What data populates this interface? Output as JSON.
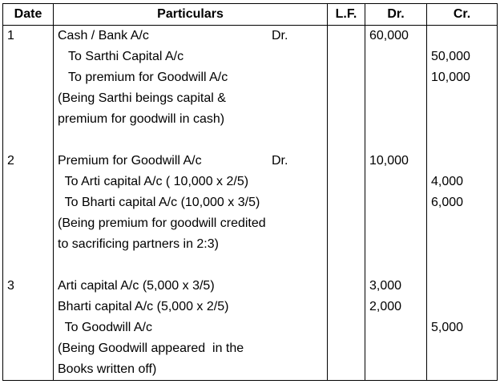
{
  "headers": {
    "date": "Date",
    "particulars": "Particulars",
    "lf": "L.F.",
    "dr": "Dr.",
    "cr": "Cr."
  },
  "entries": [
    {
      "date": "1",
      "lines": [
        {
          "text": "Cash / Bank A/c",
          "dr_mark": "Dr.",
          "dr": "60,000",
          "cr": ""
        },
        {
          "text": "   To Sarthi Capital A/c",
          "dr": "",
          "cr": "50,000"
        },
        {
          "text": "   To premium for Goodwill A/c",
          "dr": "",
          "cr": "10,000"
        },
        {
          "text": "(Being Sarthi beings capital &",
          "dr": "",
          "cr": ""
        },
        {
          "text": "premium for goodwill in cash)",
          "dr": "",
          "cr": ""
        }
      ]
    },
    {
      "date": "2",
      "lines": [
        {
          "text": "Premium for Goodwill A/c",
          "dr_mark": "Dr.",
          "dr": "10,000",
          "cr": ""
        },
        {
          "text": "  To Arti capital A/c ( 10,000 x 2/5)",
          "dr": "",
          "cr": "4,000"
        },
        {
          "text": "  To Bharti capital A/c (10,000 x 3/5)",
          "dr": "",
          "cr": "6,000"
        },
        {
          "text": "(Being premium for goodwill credited",
          "dr": "",
          "cr": ""
        },
        {
          "text": "to sacrificing partners in 2:3)",
          "dr": "",
          "cr": ""
        }
      ]
    },
    {
      "date": "3",
      "lines": [
        {
          "text": "Arti capital A/c (5,000 x 3/5)",
          "dr": "3,000",
          "cr": ""
        },
        {
          "text": "Bharti capital A/c (5,000 x 2/5)",
          "dr": "2,000",
          "cr": ""
        },
        {
          "text": "  To Goodwill A/c",
          "dr": "",
          "cr": "5,000"
        },
        {
          "text": "(Being Goodwill appeared  in the",
          "dr": "",
          "cr": ""
        },
        {
          "text": "Books written off)",
          "dr": "",
          "cr": ""
        }
      ]
    }
  ]
}
